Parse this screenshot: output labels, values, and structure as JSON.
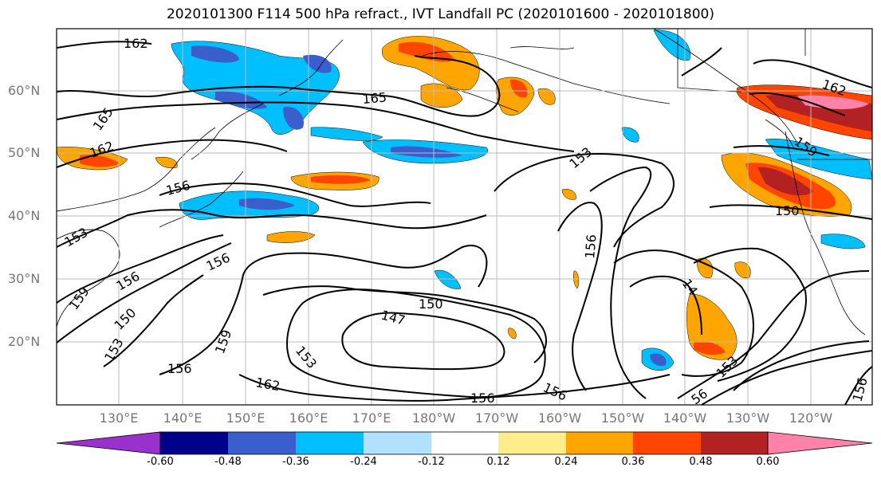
{
  "title": "2020101300 F114 500 hPa refract., IVT Landfall PC (2020101600 - 2020101800)",
  "lat_labels": [
    "60°N",
    "50°N",
    "40°N",
    "30°N",
    "20°N"
  ],
  "lon_labels": [
    "130°E",
    "140°E",
    "150°E",
    "160°E",
    "170°E",
    "180°W",
    "170°W",
    "160°W",
    "150°W",
    "140°W",
    "130°W",
    "120°W"
  ],
  "colorbar": {
    "tick_labels": [
      "-0.60",
      "-0.48",
      "-0.36",
      "-0.24",
      "-0.12",
      "0.12",
      "0.24",
      "0.36",
      "0.48",
      "0.60"
    ],
    "colors": [
      "#9932cc",
      "#00008b",
      "#3a5fcd",
      "#00bfff",
      "#b0e2ff",
      "#ffffff",
      "#ffec8b",
      "#ffa500",
      "#ff4500",
      "#b22222",
      "#ff82ab"
    ]
  },
  "contour_labels": [
    "162",
    "165",
    "165",
    "162",
    "156",
    "153",
    "153",
    "156",
    "156",
    "159",
    "150",
    "153",
    "150",
    "147",
    "153",
    "159",
    "156",
    "162",
    "156",
    "156",
    "156",
    "153",
    "156",
    "159",
    "150",
    "162",
    "14",
    "56",
    "156"
  ],
  "shading_colors": {
    "neg_light": "#b0e2ff",
    "neg_mid": "#00bfff",
    "neg_dark": "#3a5fcd",
    "pos_light": "#ffec8b",
    "pos_mid": "#ffa500",
    "pos_dark": "#ff4500",
    "pos_darker": "#b22222",
    "pos_max": "#ff82ab"
  }
}
